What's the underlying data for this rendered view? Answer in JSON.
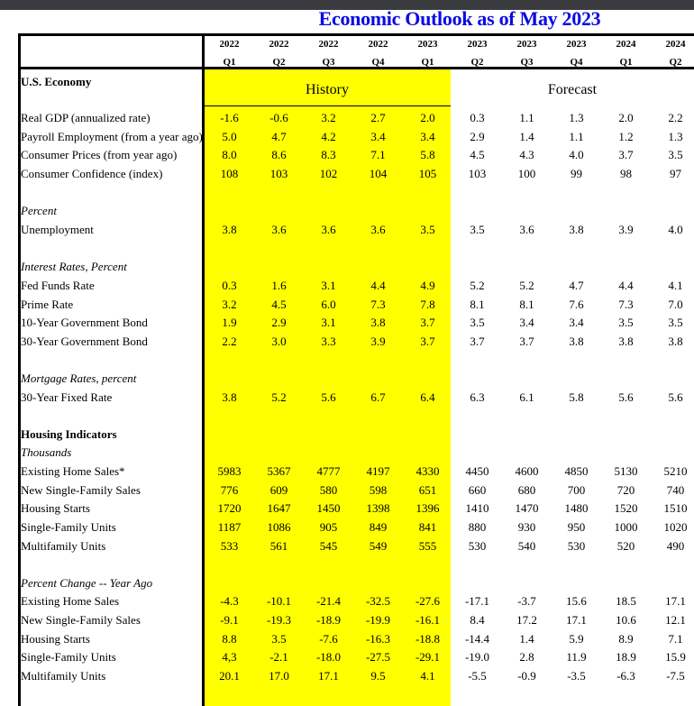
{
  "title": "Economic Outlook as of May 2023",
  "columns": [
    {
      "year": "2022",
      "q": "Q1"
    },
    {
      "year": "2022",
      "q": "Q2"
    },
    {
      "year": "2022",
      "q": "Q3"
    },
    {
      "year": "2022",
      "q": "Q4"
    },
    {
      "year": "2023",
      "q": "Q1"
    },
    {
      "year": "2023",
      "q": "Q2"
    },
    {
      "year": "2023",
      "q": "Q3"
    },
    {
      "year": "2023",
      "q": "Q4"
    },
    {
      "year": "2024",
      "q": "Q1"
    },
    {
      "year": "2024",
      "q": "Q2"
    }
  ],
  "history_label": "History",
  "forecast_label": "Forecast",
  "colors": {
    "title": "#0a0ae6",
    "history_bg": "#ffff00"
  },
  "rows": [
    {
      "label": "U.S. Economy",
      "style": "bold"
    },
    {
      "label": "Real GDP (annualized rate)",
      "values": [
        "-1.6",
        "-0.6",
        "3.2",
        "2.7",
        "2.0",
        "0.3",
        "1.1",
        "1.3",
        "2.0",
        "2.2"
      ]
    },
    {
      "label": "Payroll Employment (from a year ago)",
      "values": [
        "5.0",
        "4.7",
        "4.2",
        "3.4",
        "3.4",
        "2.9",
        "1.4",
        "1.1",
        "1.2",
        "1.3"
      ]
    },
    {
      "label": "Consumer Prices (from year ago)",
      "values": [
        "8.0",
        "8.6",
        "8.3",
        "7.1",
        "5.8",
        "4.5",
        "4.3",
        "4.0",
        "3.7",
        "3.5"
      ]
    },
    {
      "label": "Consumer Confidence (index)",
      "values": [
        "108",
        "103",
        "102",
        "104",
        "105",
        "103",
        "100",
        "99",
        "98",
        "97"
      ]
    },
    {
      "label": "Percent",
      "style": "italic"
    },
    {
      "label": "Unemployment",
      "values": [
        "3.8",
        "3.6",
        "3.6",
        "3.6",
        "3.5",
        "3.5",
        "3.6",
        "3.8",
        "3.9",
        "4.0"
      ]
    },
    {
      "label": "Interest Rates, Percent",
      "style": "italic"
    },
    {
      "label": "Fed Funds Rate",
      "values": [
        "0.3",
        "1.6",
        "3.1",
        "4.4",
        "4.9",
        "5.2",
        "5.2",
        "4.7",
        "4.4",
        "4.1"
      ]
    },
    {
      "label": "Prime Rate",
      "values": [
        "3.2",
        "4.5",
        "6.0",
        "7.3",
        "7.8",
        "8.1",
        "8.1",
        "7.6",
        "7.3",
        "7.0"
      ]
    },
    {
      "label": "10-Year Government Bond",
      "values": [
        "1.9",
        "2.9",
        "3.1",
        "3.8",
        "3.7",
        "3.5",
        "3.4",
        "3.4",
        "3.5",
        "3.5"
      ]
    },
    {
      "label": "30-Year Government Bond",
      "values": [
        "2.2",
        "3.0",
        "3.3",
        "3.9",
        "3.7",
        "3.7",
        "3.7",
        "3.8",
        "3.8",
        "3.8"
      ]
    },
    {
      "label": "Mortgage Rates, percent",
      "style": "italic"
    },
    {
      "label": "30-Year Fixed Rate",
      "values": [
        "3.8",
        "5.2",
        "5.6",
        "6.7",
        "6.4",
        "6.3",
        "6.1",
        "5.8",
        "5.6",
        "5.6"
      ]
    },
    {
      "label": "Housing Indicators",
      "style": "bold"
    },
    {
      "label": "Thousands",
      "style": "italic"
    },
    {
      "label": "Existing Home Sales*",
      "values": [
        "5983",
        "5367",
        "4777",
        "4197",
        "4330",
        "4450",
        "4600",
        "4850",
        "5130",
        "5210"
      ]
    },
    {
      "label": "New Single-Family Sales",
      "values": [
        "776",
        "609",
        "580",
        "598",
        "651",
        "660",
        "680",
        "700",
        "720",
        "740"
      ]
    },
    {
      "label": "Housing Starts",
      "values": [
        "1720",
        "1647",
        "1450",
        "1398",
        "1396",
        "1410",
        "1470",
        "1480",
        "1520",
        "1510"
      ]
    },
    {
      "label": "Single-Family Units",
      "values": [
        "1187",
        "1086",
        "905",
        "849",
        "841",
        "880",
        "930",
        "950",
        "1000",
        "1020"
      ]
    },
    {
      "label": "Multifamily Units",
      "values": [
        "533",
        "561",
        "545",
        "549",
        "555",
        "530",
        "540",
        "530",
        "520",
        "490"
      ]
    },
    {
      "label": "Percent Change -- Year Ago",
      "style": "italic"
    },
    {
      "label": "Existing Home Sales",
      "values": [
        "-4.3",
        "-10.1",
        "-21.4",
        "-32.5",
        "-27.6",
        "-17.1",
        "-3.7",
        "15.6",
        "18.5",
        "17.1"
      ]
    },
    {
      "label": "New Single-Family Sales",
      "values": [
        "-9.1",
        "-19.3",
        "-18.9",
        "-19.9",
        "-16.1",
        "8.4",
        "17.2",
        "17.1",
        "10.6",
        "12.1"
      ]
    },
    {
      "label": "Housing Starts",
      "values": [
        "8.8",
        "3.5",
        "-7.6",
        "-16.3",
        "-18.8",
        "-14.4",
        "1.4",
        "5.9",
        "8.9",
        "7.1"
      ]
    },
    {
      "label": "Single-Family Units",
      "values": [
        "4,3",
        "-2.1",
        "-18.0",
        "-27.5",
        "-29.1",
        "-19.0",
        "2.8",
        "11.9",
        "18.9",
        "15.9"
      ]
    },
    {
      "label": "Multifamily Units",
      "values": [
        "20.1",
        "17.0",
        "17.1",
        "9.5",
        "4.1",
        "-5.5",
        "-0.9",
        "-3.5",
        "-6.3",
        "-7.5"
      ]
    }
  ]
}
